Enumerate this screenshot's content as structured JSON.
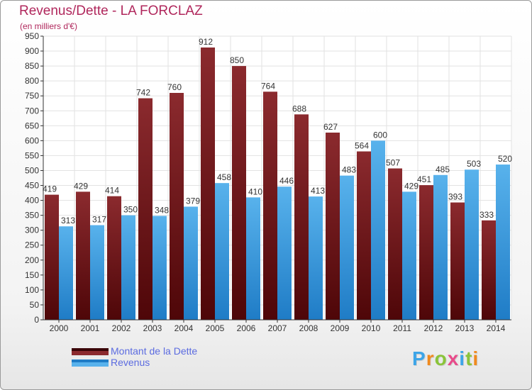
{
  "chart": {
    "title": "Revenus/Dette - LA FORCLAZ",
    "subtitle": "(en milliers d'€)"
  },
  "legend": {
    "items": [
      {
        "label": "Montant de la Dette",
        "color": "#7a1a1e"
      },
      {
        "label": "Revenus",
        "color": "#3d9fe0"
      }
    ]
  },
  "logo": {
    "text": "Proxiti",
    "letter_colors": [
      "#3da5e8",
      "#f08a1e",
      "#8ac43a",
      "#e84b8a",
      "#3da5e8",
      "#8ac43a",
      "#f08a1e"
    ]
  },
  "chart_data": {
    "type": "bar",
    "categories": [
      "2000",
      "2001",
      "2002",
      "2003",
      "2004",
      "2005",
      "2006",
      "2007",
      "2008",
      "2009",
      "2010",
      "2011",
      "2012",
      "2013",
      "2014"
    ],
    "series": [
      {
        "name": "Montant de la Dette",
        "color": "#7a1a1e",
        "values": [
          419,
          429,
          414,
          742,
          760,
          912,
          850,
          764,
          688,
          627,
          564,
          507,
          451,
          393,
          333
        ]
      },
      {
        "name": "Revenus",
        "color": "#3d9fe0",
        "values": [
          313,
          317,
          350,
          348,
          379,
          458,
          410,
          446,
          413,
          483,
          600,
          429,
          485,
          503,
          520
        ]
      }
    ],
    "data_labels": {
      "Montant de la Dette": [
        "419",
        "429",
        "414",
        "742",
        "760",
        "912",
        "850",
        "764",
        "688",
        "627",
        "564",
        "507",
        "451",
        "393",
        "333"
      ],
      "Revenus": [
        "313",
        "317",
        "350",
        "348",
        "379",
        "458",
        "410",
        "446",
        "413",
        "483",
        "600",
        "429",
        "485",
        "503",
        "520"
      ]
    },
    "title": "Revenus/Dette - LA FORCLAZ",
    "subtitle": "(en milliers d'€)",
    "ylim": [
      0,
      950
    ],
    "ytick_step": 50,
    "grid": true,
    "legend_position": "bottom-left"
  }
}
